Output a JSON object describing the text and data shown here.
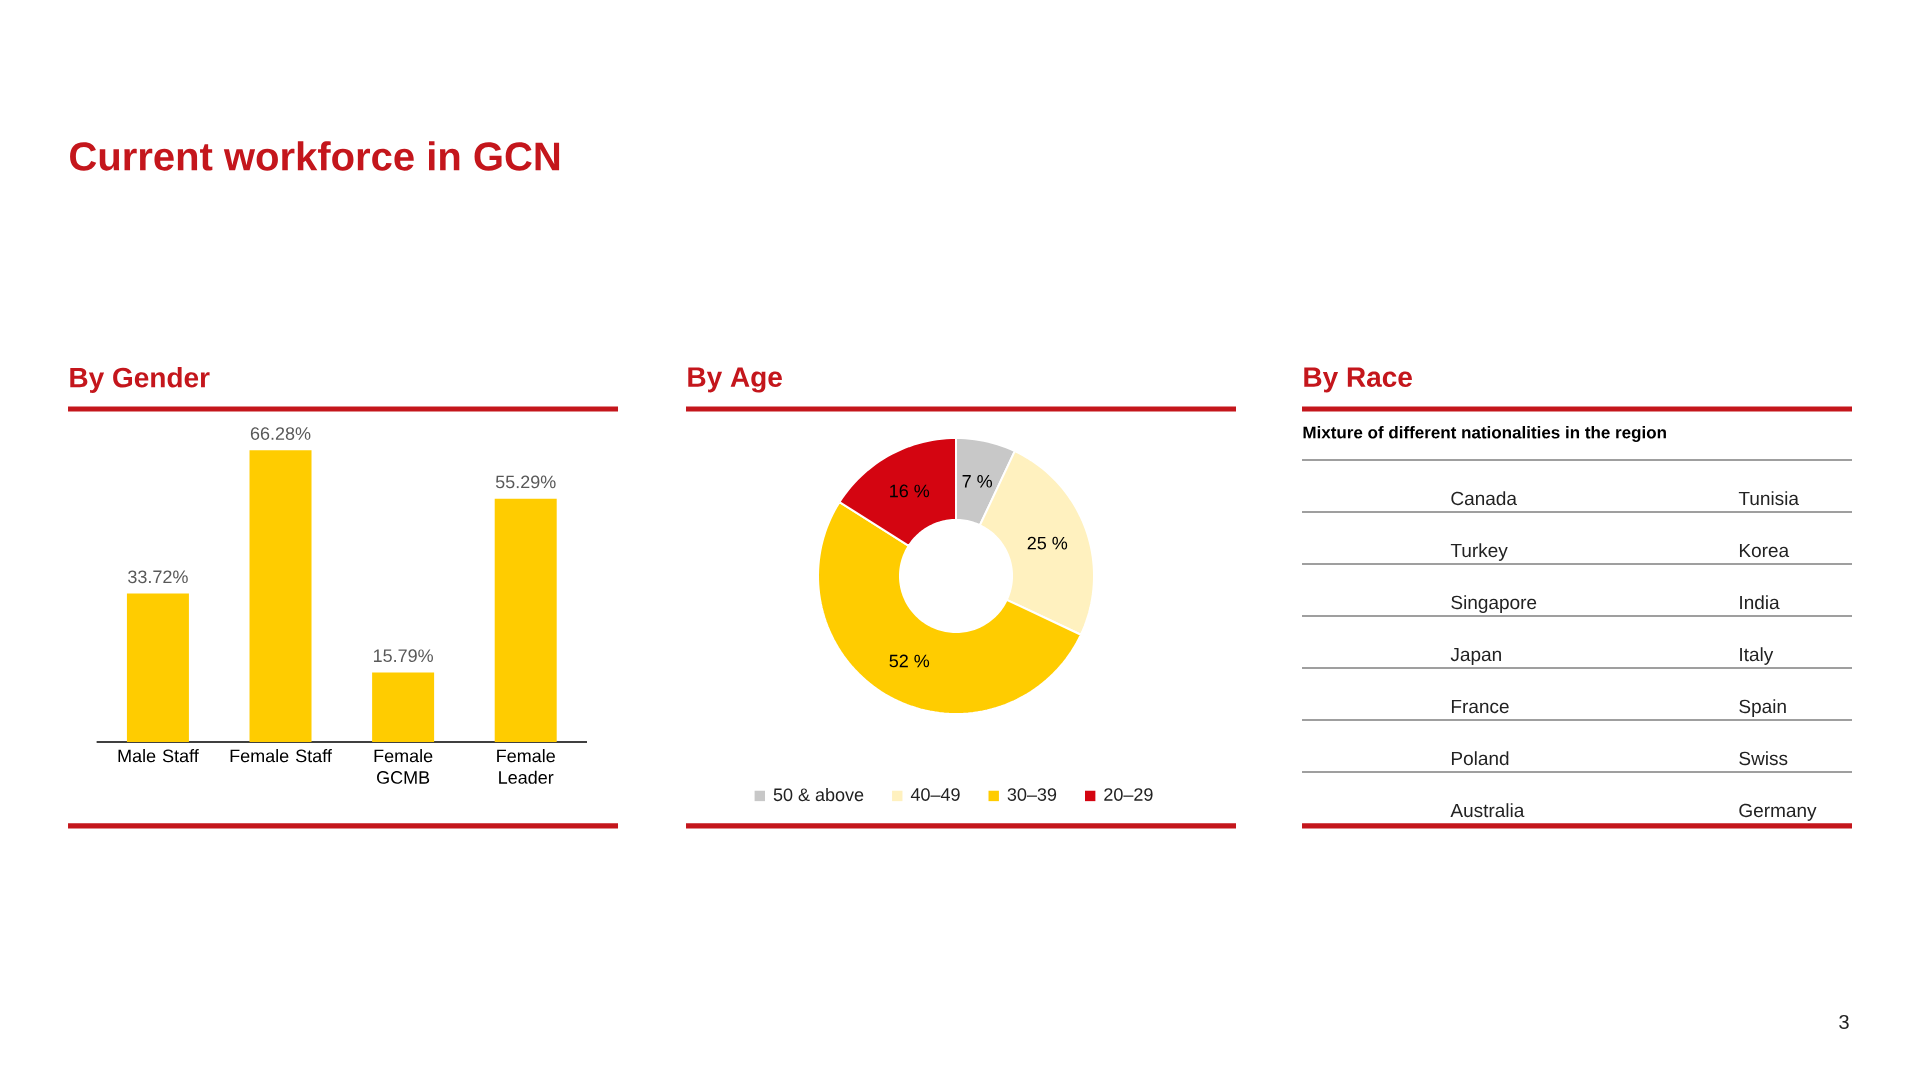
{
  "chart_data": [
    {
      "type": "other",
      "title": "Current workforce in GCN",
      "annotations": [
        "3"
      ]
    },
    {
      "type": "bar",
      "title": "By Gender",
      "categories": [
        "Male Staff",
        "Female Staff",
        "Female GCMB",
        "Female Leader"
      ],
      "values": [
        33.72,
        66.28,
        15.79,
        55.29
      ],
      "value_labels": [
        "33.72%",
        "66.28%",
        "15.79%",
        "55.29%"
      ],
      "color": "#ffcc00",
      "tick_labels": "x"
    },
    {
      "type": "donut",
      "title": "By Age",
      "categories": [
        "50 & above",
        "40–49",
        "30–39",
        "20–29"
      ],
      "values": [
        7,
        25,
        52,
        16
      ],
      "value_labels": [
        "7 %",
        "25 %",
        "52 %",
        "16 %"
      ],
      "colors": [
        "#c8c8c8",
        "#fff1bf",
        "#ffcc00",
        "#d40511"
      ],
      "legend": "bottom"
    },
    {
      "type": "other",
      "title": "By Race",
      "subtitle": "Mixture of different nationalities in the region",
      "annotations": [
        "Canada",
        "Tunisia",
        "Turkey",
        "Korea",
        "Singapore",
        "India",
        "Japan",
        "Italy",
        "France",
        "Spain",
        "Poland",
        "Swiss",
        "Australia",
        "Germany"
      ]
    }
  ]
}
